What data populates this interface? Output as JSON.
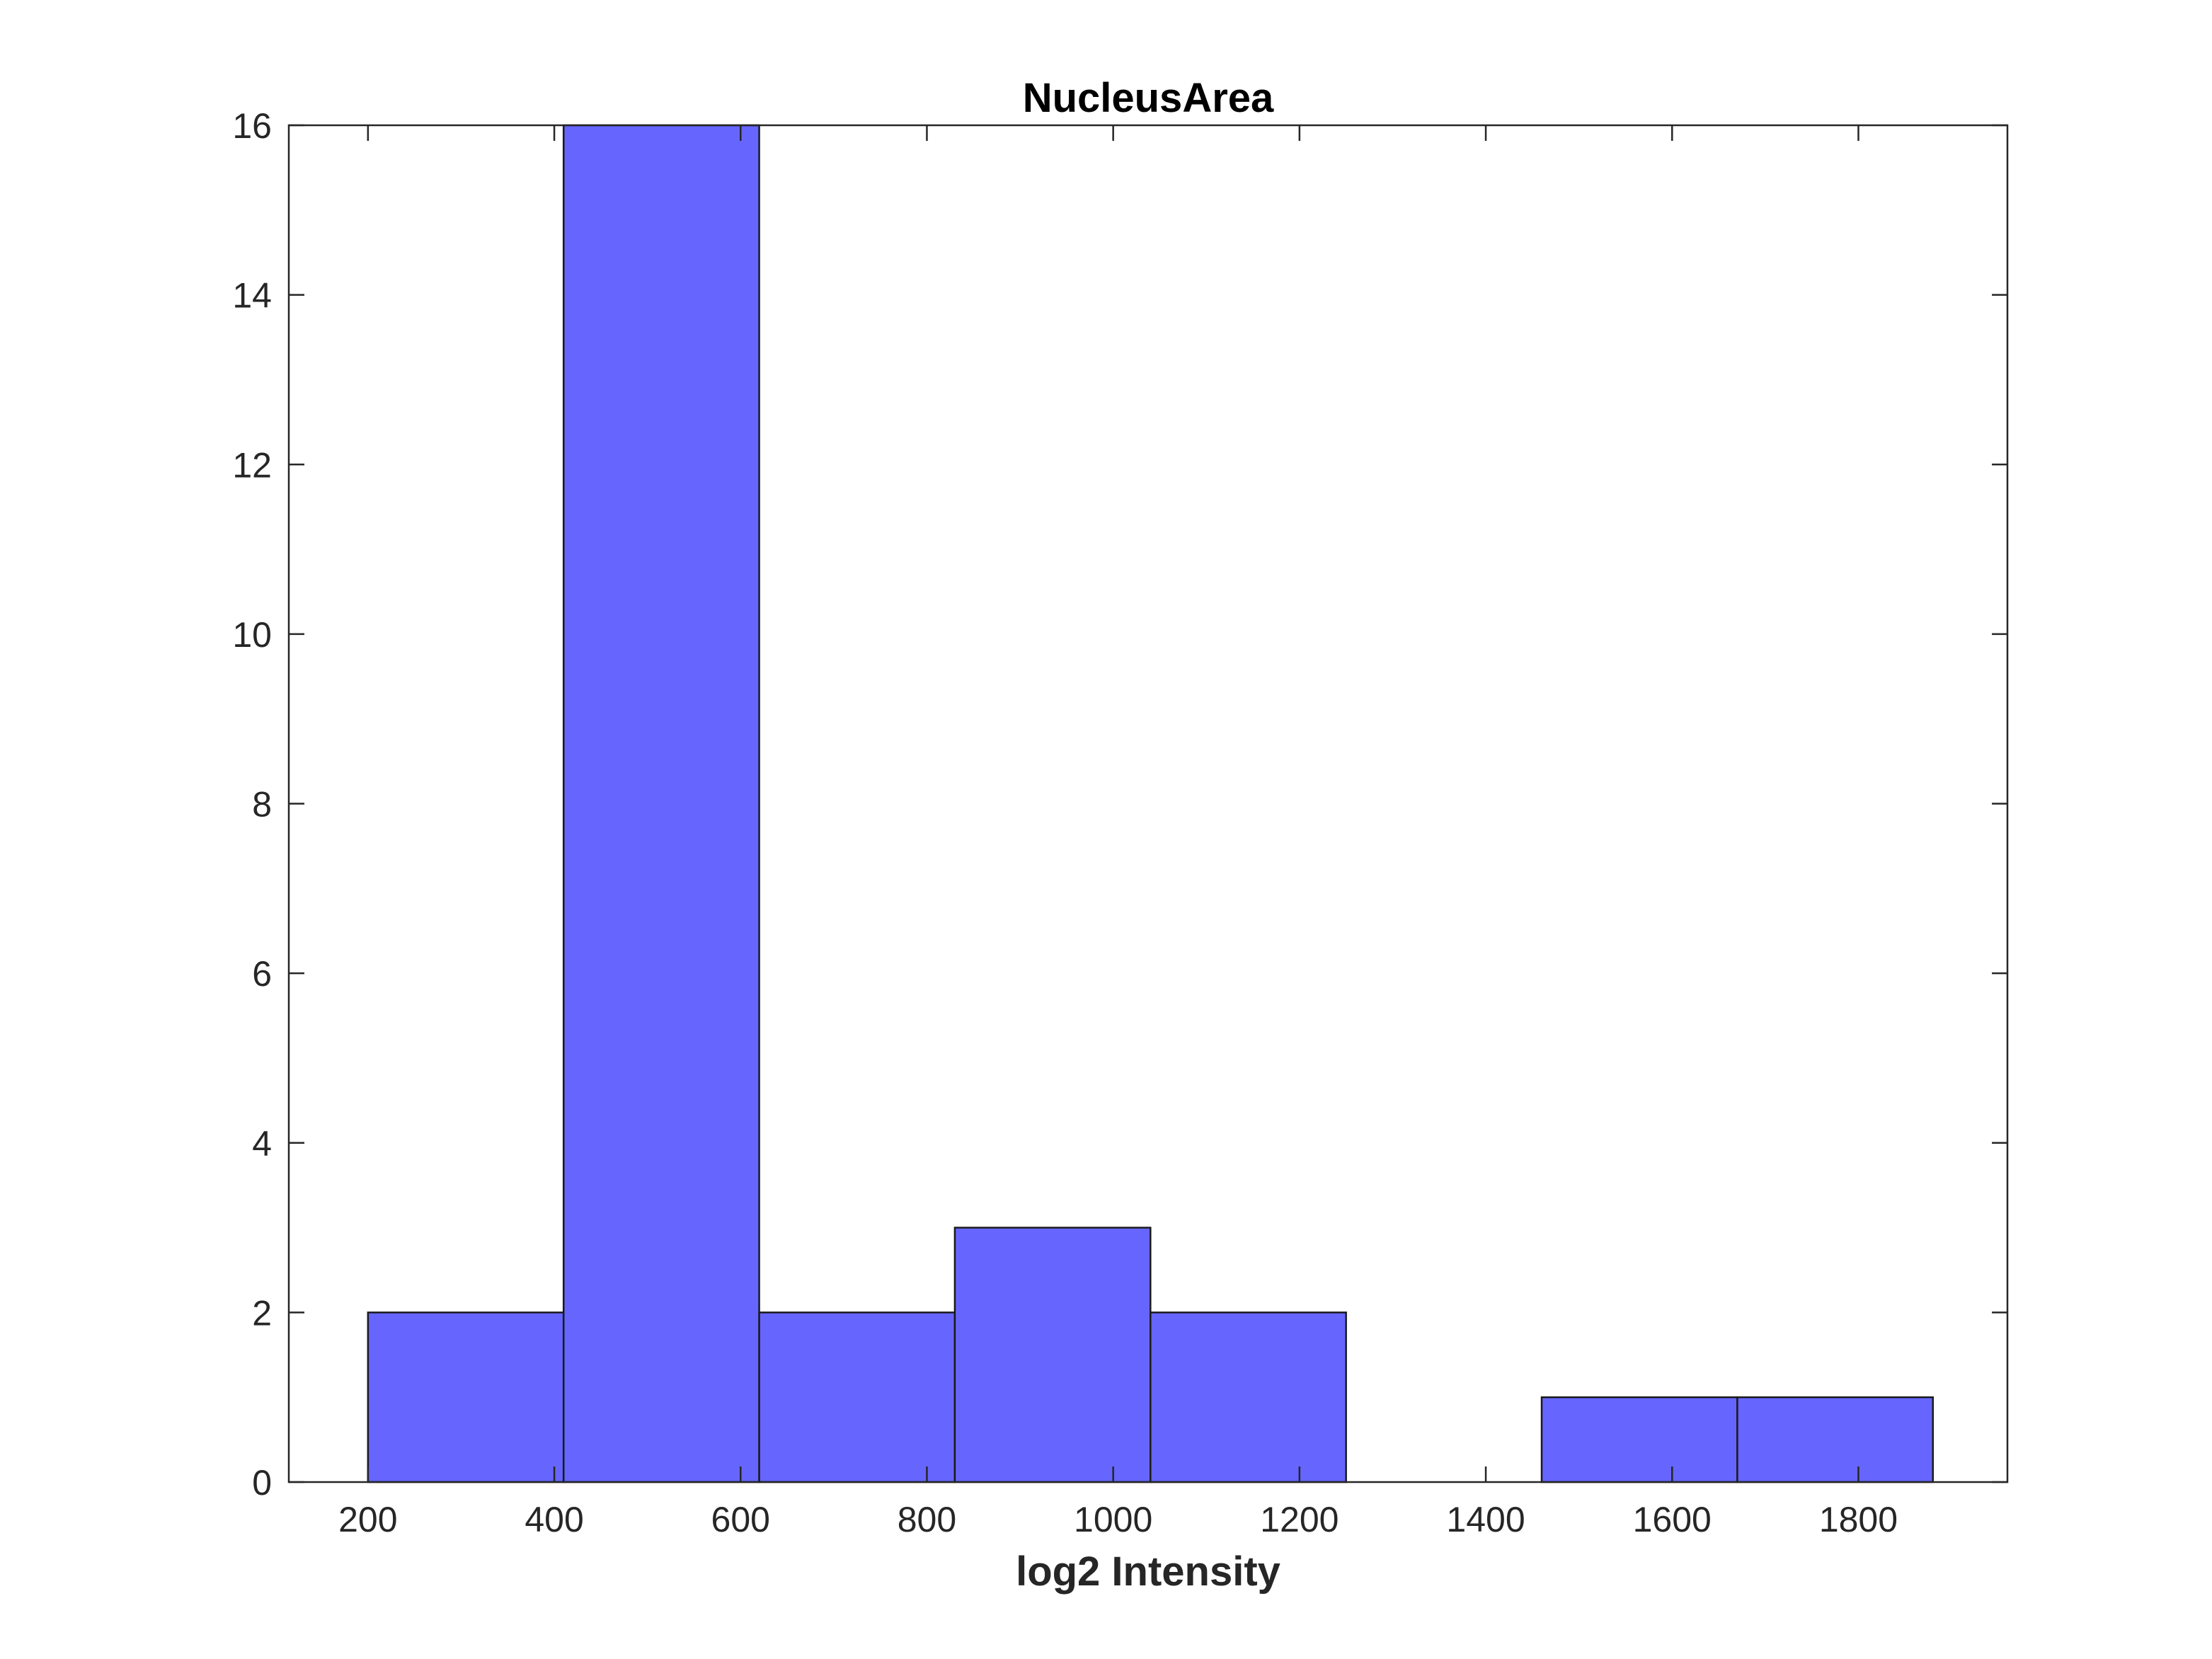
{
  "chart_data": {
    "type": "bar",
    "title": "NucleusArea",
    "xlabel": "log2 Intensity",
    "ylabel": "",
    "xlim": [
      115,
      1960
    ],
    "ylim": [
      0,
      16
    ],
    "xticks": [
      200,
      400,
      600,
      800,
      1000,
      1200,
      1400,
      1600,
      1800
    ],
    "yticks": [
      0,
      2,
      4,
      6,
      8,
      10,
      12,
      14,
      16
    ],
    "bin_edges": [
      200,
      410,
      620,
      830,
      1040,
      1250,
      1460,
      1670,
      1880
    ],
    "values": [
      2,
      16,
      2,
      3,
      2,
      0,
      1,
      1
    ],
    "grid": false,
    "legend": "none",
    "colors": {
      "bar_fill": "#6666ff",
      "bar_edge": "#1a1a1a",
      "axis": "#262626"
    }
  }
}
